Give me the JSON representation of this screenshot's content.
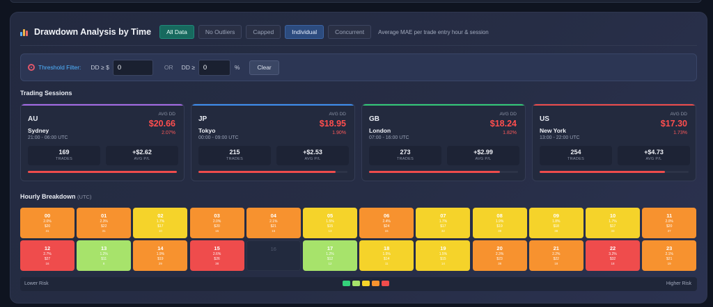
{
  "header": {
    "icon": "bar-chart-icon",
    "title": "Drawdown Analysis by Time",
    "buttons": [
      {
        "label": "All Data",
        "state": "active-green"
      },
      {
        "label": "No Outliers",
        "state": "inactive"
      },
      {
        "label": "Capped",
        "state": "inactive"
      },
      {
        "label": "Individual",
        "state": "active-blue"
      },
      {
        "label": "Concurrent",
        "state": "inactive"
      }
    ],
    "subtitle": "Average MAE per trade entry hour & session"
  },
  "filter": {
    "icon": "target-icon",
    "label": "Threshold Filter:",
    "dd_dollar_label": "DD ≥ $",
    "dd_dollar_value": "0",
    "or_label": "OR",
    "dd_pct_label": "DD ≥",
    "dd_pct_value": "0",
    "pct_symbol": "%",
    "clear_label": "Clear"
  },
  "sessions_title": "Trading Sessions",
  "colors": {
    "AU": "#a66be6",
    "JP": "#3e8ef0",
    "GB": "#33c978",
    "US": "#ef4c4c",
    "risk_scale": [
      "#34d27b",
      "#a7e36b",
      "#f5d32a",
      "#f7922f",
      "#ef4c4c"
    ]
  },
  "sessions": [
    {
      "code": "AU",
      "city": "Sydney",
      "hours": "21:00 - 06:00 UTC",
      "avg_label": "AVG DD",
      "avg_dd": "$20.66",
      "avg_pct": "2.07%",
      "trades": "169",
      "trades_label": "TRADES",
      "avg_pl": "+$2.62",
      "avg_pl_label": "AVG P/L",
      "risk": 1.0
    },
    {
      "code": "JP",
      "city": "Tokyo",
      "hours": "00:00 - 09:00 UTC",
      "avg_label": "AVG DD",
      "avg_dd": "$18.95",
      "avg_pct": "1.90%",
      "trades": "215",
      "trades_label": "TRADES",
      "avg_pl": "+$2.53",
      "avg_pl_label": "AVG P/L",
      "risk": 0.92
    },
    {
      "code": "GB",
      "city": "London",
      "hours": "07:00 - 16:00 UTC",
      "avg_label": "AVG DD",
      "avg_dd": "$18.24",
      "avg_pct": "1.82%",
      "trades": "273",
      "trades_label": "TRADES",
      "avg_pl": "+$2.99",
      "avg_pl_label": "AVG P/L",
      "risk": 0.88
    },
    {
      "code": "US",
      "city": "New York",
      "hours": "13:00 - 22:00 UTC",
      "avg_label": "AVG DD",
      "avg_dd": "$17.30",
      "avg_pct": "1.73%",
      "trades": "254",
      "trades_label": "TRADES",
      "avg_pl": "+$4.73",
      "avg_pl_label": "AVG P/L",
      "risk": 0.84
    }
  ],
  "hourly_title": "Hourly Breakdown",
  "hourly_note": "(UTC)",
  "hours": [
    {
      "hour": "00",
      "pct": "2.0%",
      "dd": "$20",
      "trades": "31",
      "risk": 4
    },
    {
      "hour": "01",
      "pct": "2.3%",
      "dd": "$22",
      "trades": "31",
      "risk": 4
    },
    {
      "hour": "02",
      "pct": "1.7%",
      "dd": "$17",
      "trades": "10",
      "risk": 3
    },
    {
      "hour": "03",
      "pct": "2.0%",
      "dd": "$20",
      "trades": "15",
      "risk": 4
    },
    {
      "hour": "04",
      "pct": "2.1%",
      "dd": "$21",
      "trades": "15",
      "risk": 4
    },
    {
      "hour": "05",
      "pct": "1.5%",
      "dd": "$15",
      "trades": "13",
      "risk": 3
    },
    {
      "hour": "06",
      "pct": "2.4%",
      "dd": "$24",
      "trades": "15",
      "risk": 4
    },
    {
      "hour": "07",
      "pct": "1.7%",
      "dd": "$17",
      "trades": "32",
      "risk": 3
    },
    {
      "hour": "08",
      "pct": "1.9%",
      "dd": "$19",
      "trades": "38",
      "risk": 3
    },
    {
      "hour": "09",
      "pct": "1.8%",
      "dd": "$18",
      "trades": "38",
      "risk": 3
    },
    {
      "hour": "10",
      "pct": "1.7%",
      "dd": "$17",
      "trades": "33",
      "risk": 3
    },
    {
      "hour": "11",
      "pct": "2.0%",
      "dd": "$20",
      "trades": "37",
      "risk": 4
    },
    {
      "hour": "12",
      "pct": "2.7%",
      "dd": "$27",
      "trades": "16",
      "risk": 5
    },
    {
      "hour": "13",
      "pct": "1.2%",
      "dd": "$11",
      "trades": "8",
      "risk": 2
    },
    {
      "hour": "14",
      "pct": "1.9%",
      "dd": "$19",
      "trades": "29",
      "risk": 4
    },
    {
      "hour": "15",
      "pct": "2.6%",
      "dd": "$26",
      "trades": "38",
      "risk": 5
    },
    {
      "hour": "16",
      "pct": "",
      "dd": "",
      "trades": "",
      "risk": 0
    },
    {
      "hour": "17",
      "pct": "1.2%",
      "dd": "$12",
      "trades": "12",
      "risk": 2
    },
    {
      "hour": "18",
      "pct": "1.5%",
      "dd": "$14",
      "trades": "11",
      "risk": 3
    },
    {
      "hour": "19",
      "pct": "1.5%",
      "dd": "$15",
      "trades": "14",
      "risk": 3
    },
    {
      "hour": "20",
      "pct": "2.3%",
      "dd": "$23",
      "trades": "38",
      "risk": 4
    },
    {
      "hour": "21",
      "pct": "2.2%",
      "dd": "$22",
      "trades": "18",
      "risk": 4
    },
    {
      "hour": "22",
      "pct": "3.2%",
      "dd": "$32",
      "trades": "18",
      "risk": 5
    },
    {
      "hour": "23",
      "pct": "2.1%",
      "dd": "$21",
      "trades": "19",
      "risk": 4
    }
  ],
  "legend": {
    "low": "Lower Risk",
    "high": "Higher Risk"
  }
}
